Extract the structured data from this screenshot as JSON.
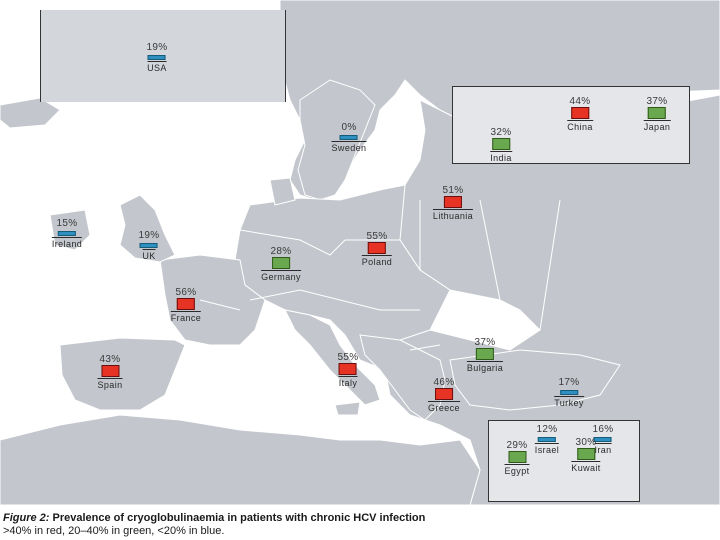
{
  "colors": {
    "water": "#ffffff",
    "land": "#c3c6cc",
    "border": "#ffffff",
    "high": "#e63323",
    "mid": "#6aa84f",
    "low": "#2e8fc0"
  },
  "markers": [
    {
      "name": "USA",
      "pct": "19%",
      "cat": "low"
    },
    {
      "name": "Sweden",
      "pct": "0%",
      "cat": "low"
    },
    {
      "name": "China",
      "pct": "44%",
      "cat": "high"
    },
    {
      "name": "Japan",
      "pct": "37%",
      "cat": "mid"
    },
    {
      "name": "India",
      "pct": "32%",
      "cat": "mid"
    },
    {
      "name": "Lithuania",
      "pct": "51%",
      "cat": "high"
    },
    {
      "name": "Ireland",
      "pct": "15%",
      "cat": "low"
    },
    {
      "name": "UK",
      "pct": "19%",
      "cat": "low"
    },
    {
      "name": "Poland",
      "pct": "55%",
      "cat": "high"
    },
    {
      "name": "Germany",
      "pct": "28%",
      "cat": "mid"
    },
    {
      "name": "France",
      "pct": "56%",
      "cat": "high"
    },
    {
      "name": "Spain",
      "pct": "43%",
      "cat": "high"
    },
    {
      "name": "Italy",
      "pct": "55%",
      "cat": "high"
    },
    {
      "name": "Bulgaria",
      "pct": "37%",
      "cat": "mid"
    },
    {
      "name": "Greece",
      "pct": "46%",
      "cat": "high"
    },
    {
      "name": "Turkey",
      "pct": "17%",
      "cat": "low"
    },
    {
      "name": "Israel",
      "pct": "12%",
      "cat": "low"
    },
    {
      "name": "Iran",
      "pct": "16%",
      "cat": "low"
    },
    {
      "name": "Egypt",
      "pct": "29%",
      "cat": "mid"
    },
    {
      "name": "Kuwait",
      "pct": "30%",
      "cat": "mid"
    }
  ],
  "caption": {
    "label": "Figure 2:",
    "title": "Prevalence of cryoglobulinaemia in patients with chronic HCV infection",
    "legend": ">40% in red, 20–40% in green, <20% in blue."
  }
}
